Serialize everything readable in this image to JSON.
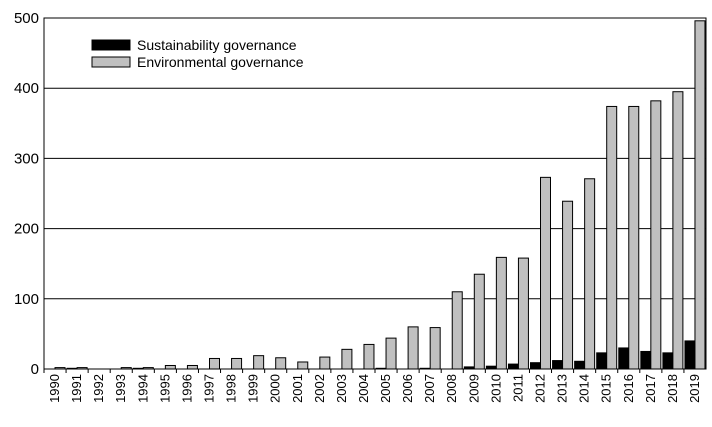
{
  "chart_data": {
    "type": "bar",
    "title": "",
    "xlabel": "",
    "ylabel": "",
    "ylim": [
      0,
      500
    ],
    "yticks": [
      0,
      100,
      200,
      300,
      400,
      500
    ],
    "grid": "horizontal",
    "legend_position": "top-left",
    "categories": [
      "1990",
      "1991",
      "1992",
      "1993",
      "1994",
      "1995",
      "1996",
      "1997",
      "1998",
      "1999",
      "2000",
      "2001",
      "2002",
      "2003",
      "2004",
      "2005",
      "2006",
      "2007",
      "2008",
      "2009",
      "2010",
      "2011",
      "2012",
      "2013",
      "2014",
      "2015",
      "2016",
      "2017",
      "2018",
      "2019"
    ],
    "series": [
      {
        "name": "Sustainability governance",
        "color": "#000000",
        "values": [
          0,
          1,
          0,
          0,
          1,
          0,
          0,
          0,
          0,
          0,
          0,
          0,
          0,
          0,
          0,
          1,
          0,
          1,
          0,
          3,
          4,
          7,
          9,
          12,
          11,
          23,
          30,
          25,
          23,
          40
        ]
      },
      {
        "name": "Environmental governance",
        "color": "#c0c0c0",
        "values": [
          2,
          2,
          0,
          2,
          2,
          5,
          5,
          15,
          15,
          19,
          16,
          10,
          17,
          28,
          35,
          44,
          60,
          59,
          110,
          135,
          159,
          158,
          273,
          239,
          271,
          374,
          374,
          382,
          395,
          496
        ]
      }
    ]
  }
}
